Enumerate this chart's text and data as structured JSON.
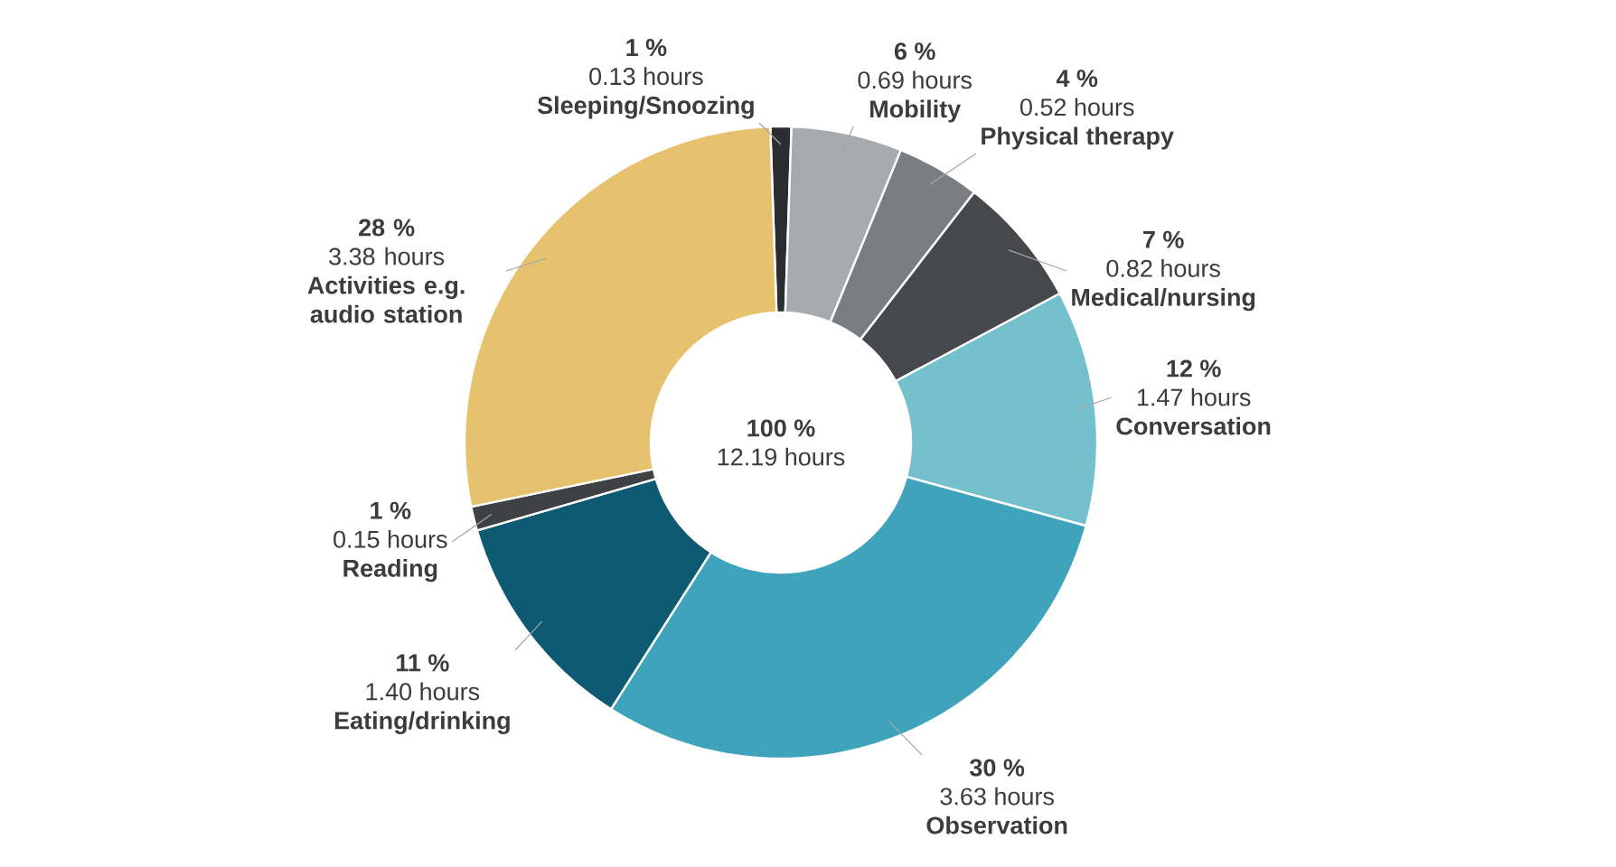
{
  "chart_data": {
    "type": "donut",
    "categories": [
      "Sleeping/Snoozing",
      "Mobility",
      "Physical therapy",
      "Medical/nursing",
      "Conversation",
      "Observation",
      "Eating/drinking",
      "Reading",
      "Activities e.g. audio station"
    ],
    "values": [
      0.13,
      0.69,
      0.52,
      0.82,
      1.47,
      3.63,
      1.4,
      0.15,
      3.38
    ],
    "value_labels": [
      "0.13 hours",
      "0.69 hours",
      "0.52 hours",
      "0.82 hours",
      "1.47 hours",
      "3.63 hours",
      "1.40 hours",
      "0.15 hours",
      "3.38 hours"
    ],
    "colors": [
      "#2b2d30",
      "#a8abae",
      "#7b7e81",
      "#46484b",
      "#74c0cc",
      "#3fa3bc",
      "#0d5a72",
      "#3f4144",
      "#e6c16e"
    ],
    "annotations": [
      {
        "text": "1 %",
        "x": "Sleeping/Snoozing"
      },
      {
        "text": "6 %",
        "x": "Mobility"
      },
      {
        "text": "4 %",
        "x": "Physical therapy"
      },
      {
        "text": "7 %",
        "x": "Medical/nursing"
      },
      {
        "text": "12 %",
        "x": "Conversation"
      },
      {
        "text": "30 %",
        "x": "Observation"
      },
      {
        "text": "11 %",
        "x": "Eating/drinking"
      },
      {
        "text": "1 %",
        "x": "Reading"
      },
      {
        "text": "28 %",
        "x": "Activities e.g. audio station"
      },
      "100 %",
      "12.19 hours"
    ]
  }
}
